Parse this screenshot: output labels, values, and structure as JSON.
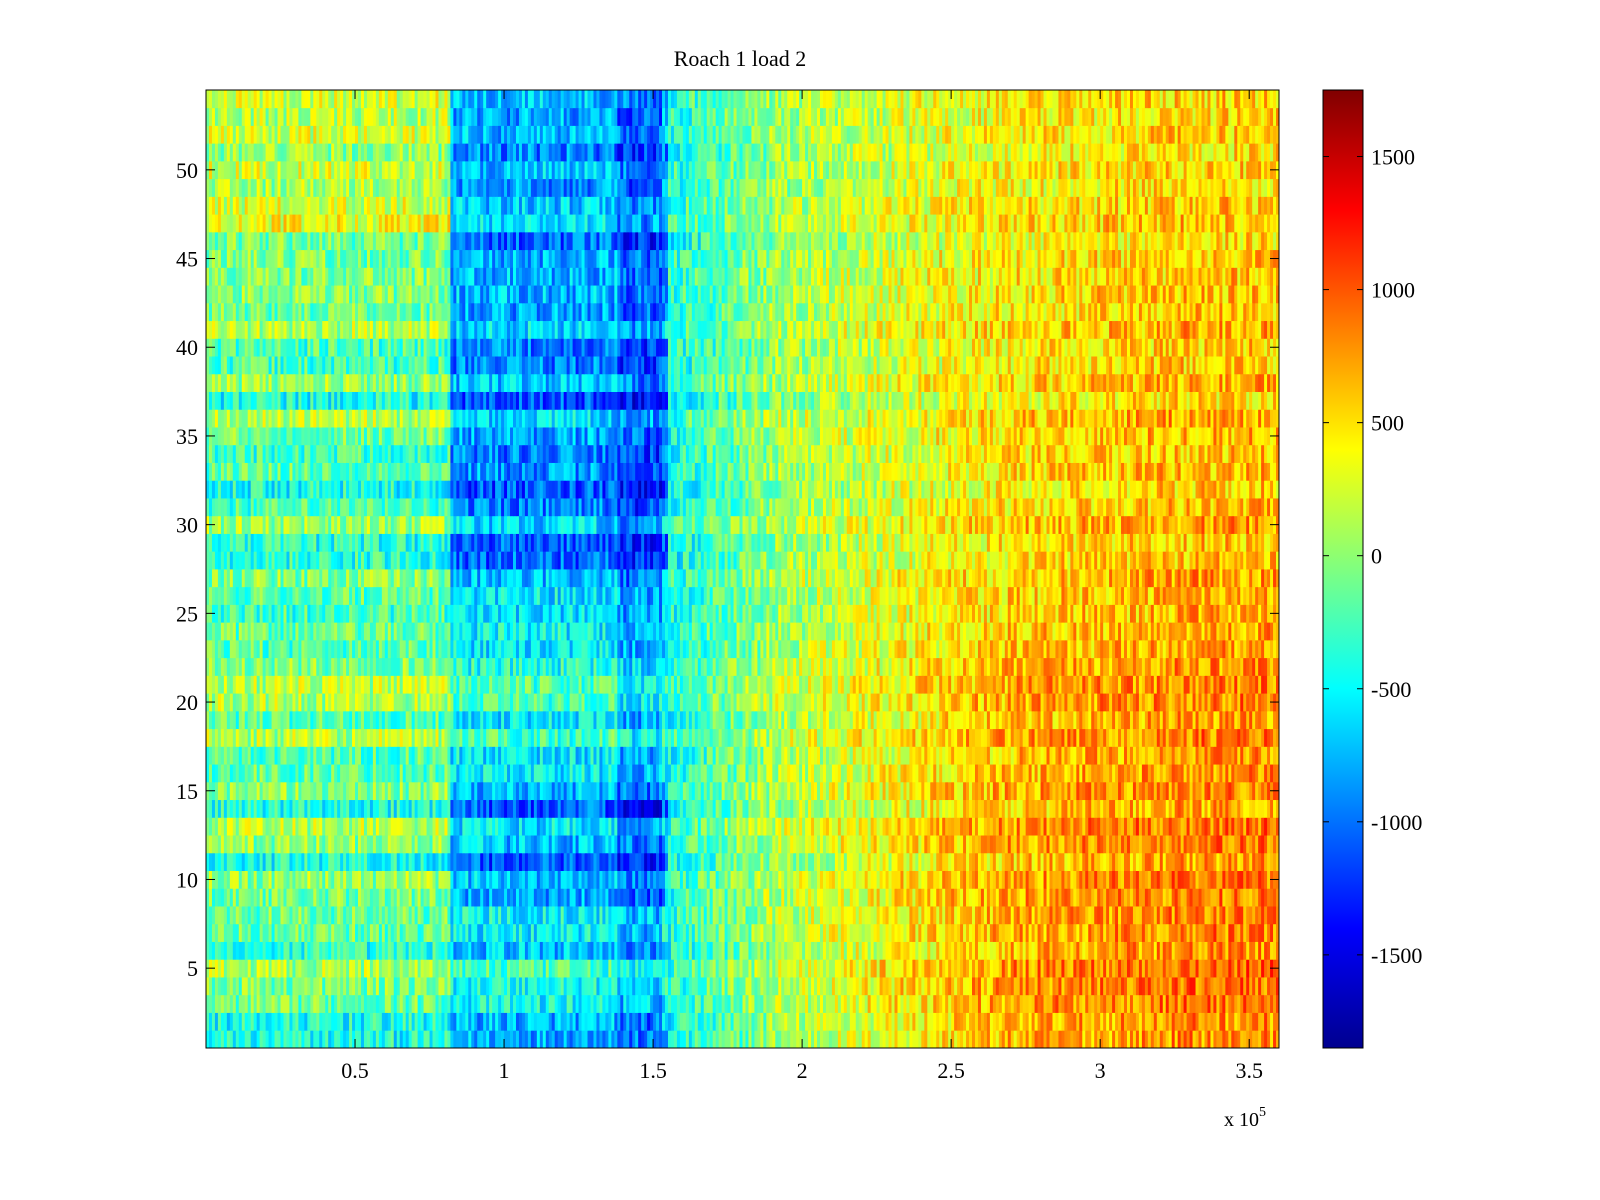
{
  "chart_data": {
    "type": "heatmap",
    "title": "Roach 1 load 2",
    "xlabel": "",
    "ylabel": "",
    "x_multiplier_label": "x 10",
    "x_multiplier_exponent": "5",
    "xlim": [
      0.0,
      3.6
    ],
    "ylim": [
      0.5,
      54.5
    ],
    "x_ticks": [
      0.5,
      1,
      1.5,
      2,
      2.5,
      3,
      3.5
    ],
    "x_tick_labels": [
      "0.5",
      "1",
      "1.5",
      "2",
      "2.5",
      "3",
      "3.5"
    ],
    "y_ticks": [
      5,
      10,
      15,
      20,
      25,
      30,
      35,
      40,
      45,
      50
    ],
    "y_tick_labels": [
      "5",
      "10",
      "15",
      "20",
      "25",
      "30",
      "35",
      "40",
      "45",
      "50"
    ],
    "rows": 54,
    "colormap": "jet",
    "clim": [
      -1850,
      1750
    ],
    "colorbar_ticks": [
      -1500,
      -1000,
      -500,
      0,
      500,
      1000,
      1500
    ],
    "colorbar_tick_labels": [
      "-1500",
      "-1000",
      "-500",
      "0",
      "500",
      "1000",
      "1500"
    ],
    "grid": false,
    "pattern": {
      "description_points": [
        {
          "x": 0.4,
          "value": -100
        },
        {
          "x": 1.15,
          "value": -900
        },
        {
          "x": 1.9,
          "value": 0
        },
        {
          "x": 2.5,
          "value": 300
        },
        {
          "x": 3.3,
          "value": 500
        }
      ],
      "low_band_x": [
        0.82,
        1.55
      ],
      "strong_low_band_x": [
        1.38,
        1.53
      ]
    }
  }
}
